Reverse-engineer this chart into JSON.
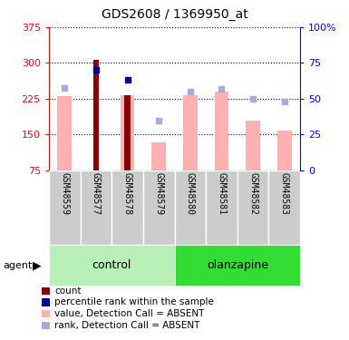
{
  "title": "GDS2608 / 1369950_at",
  "samples": [
    "GSM48559",
    "GSM48577",
    "GSM48578",
    "GSM48579",
    "GSM48580",
    "GSM48581",
    "GSM48582",
    "GSM48583"
  ],
  "red_bars": [
    null,
    307,
    232,
    null,
    null,
    null,
    null,
    null
  ],
  "pink_bars": [
    230,
    null,
    232,
    133,
    232,
    240,
    178,
    157
  ],
  "blue_squares_val": [
    null,
    285,
    265,
    null,
    null,
    null,
    null,
    null
  ],
  "light_blue_squares_val": [
    248,
    null,
    null,
    178,
    240,
    245,
    225,
    218
  ],
  "ymin": 75,
  "ymax": 375,
  "yticks": [
    75,
    150,
    225,
    300,
    375
  ],
  "y2min": 0,
  "y2max": 100,
  "y2ticks": [
    0,
    25,
    50,
    75,
    100
  ],
  "red_color": "#8B0000",
  "pink_color": "#FFB0B0",
  "blue_color": "#000099",
  "light_blue_color": "#AAAADD",
  "control_light": "#B8F0B8",
  "olanzapine_dark": "#33DD33",
  "gray_bg": "#CCCCCC",
  "legend_labels": [
    "count",
    "percentile rank within the sample",
    "value, Detection Call = ABSENT",
    "rank, Detection Call = ABSENT"
  ]
}
